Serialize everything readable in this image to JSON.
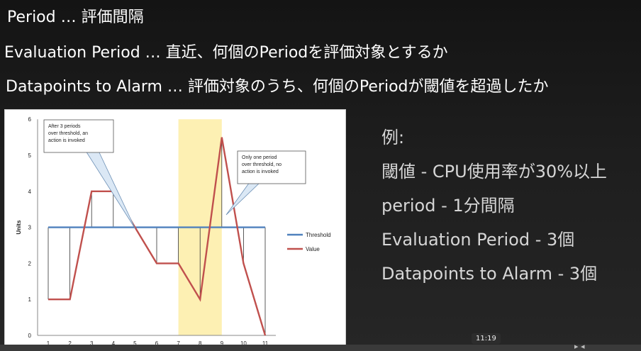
{
  "slide": {
    "line1": "Period … 評価間隔",
    "line2": "Evaluation Period … 直近、何個のPeriodを評価対象とするか",
    "line3": "Datapoints to Alarm … 評価対象のうち、何個のPeriodが閾値を超過したか"
  },
  "example": {
    "heading": "例:",
    "items": [
      "閾値 - CPU使用率が30%以上",
      "period - 1分間隔",
      "Evaluation Period - 3個",
      "Datapoints to Alarm - 3個"
    ]
  },
  "annotations": {
    "left": [
      "After 3 periods",
      "over threshold, an",
      "action is invoked"
    ],
    "right": [
      "Only one period",
      "over threshold, no",
      "action is invoked"
    ]
  },
  "chart_data": {
    "type": "line",
    "x": [
      1,
      2,
      3,
      4,
      5,
      6,
      7,
      8,
      9,
      10,
      11
    ],
    "series": [
      {
        "name": "Threshold",
        "values": [
          3,
          3,
          3,
          3,
          3,
          3,
          3,
          3,
          3,
          3,
          3
        ],
        "color": "#4f81bd"
      },
      {
        "name": "Value",
        "values": [
          1,
          1,
          4,
          4,
          3,
          2,
          2,
          1,
          5.5,
          2,
          0
        ],
        "color": "#c0504d"
      }
    ],
    "xticks": [
      "1",
      "2",
      "3",
      "4",
      "5",
      "6",
      "7",
      "8",
      "9",
      "10",
      "11"
    ],
    "yticks": [
      "0",
      "1",
      "2",
      "3",
      "4",
      "5",
      "6"
    ],
    "ylabel": "Units",
    "ylim": [
      0,
      6
    ],
    "highlight_x_range": [
      7,
      9
    ],
    "highlight_color": "#fdf0b3",
    "legend_position": "right"
  },
  "player": {
    "time": "11:19"
  }
}
